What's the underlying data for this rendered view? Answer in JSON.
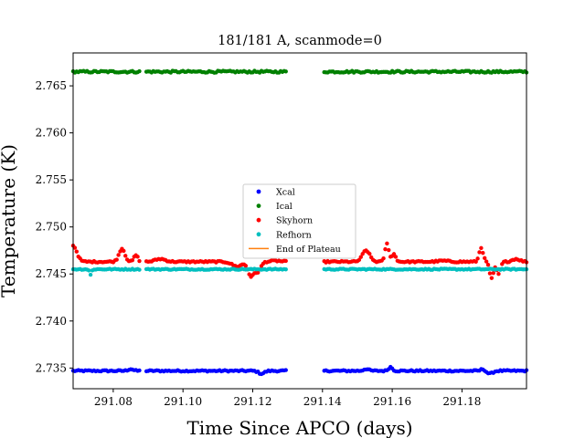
{
  "chart_data": {
    "type": "scatter",
    "title": "181/181 A, scanmode=0",
    "xlabel": "Time Since APCO (days)",
    "ylabel": "Temperature (K)",
    "xlim": [
      291.0685,
      291.1985
    ],
    "ylim": [
      2.7328,
      2.7685
    ],
    "xticks": [
      291.08,
      291.1,
      291.12,
      291.14,
      291.16,
      291.18
    ],
    "xtick_labels": [
      "291.08",
      "291.10",
      "291.12",
      "291.14",
      "291.16",
      "291.18"
    ],
    "yticks": [
      2.735,
      2.74,
      2.745,
      2.75,
      2.755,
      2.76,
      2.765
    ],
    "ytick_labels": [
      "2.735",
      "2.740",
      "2.745",
      "2.750",
      "2.755",
      "2.760",
      "2.765"
    ],
    "grid": false,
    "legend_position": "center",
    "x_segments": [
      [
        291.0685,
        291.0875
      ],
      [
        291.0895,
        291.1295
      ],
      [
        291.1405,
        291.1985
      ]
    ],
    "sample_step": 0.0005,
    "series": [
      {
        "name": "Xcal",
        "color": "#0000ff",
        "marker": "point",
        "base": 2.7347,
        "noise": 8e-05,
        "features": [
          {
            "x": 291.085,
            "dy": 0.0002,
            "w": 0.001
          },
          {
            "x": 291.1225,
            "dy": -0.0003,
            "w": 0.0012
          },
          {
            "x": 291.1525,
            "dy": 0.0002,
            "w": 0.001
          },
          {
            "x": 291.1595,
            "dy": 0.0004,
            "w": 0.0008
          },
          {
            "x": 291.186,
            "dy": 0.0002,
            "w": 0.0008
          },
          {
            "x": 291.188,
            "dy": -0.0003,
            "w": 0.0012
          }
        ]
      },
      {
        "name": "Ical",
        "color": "#008000",
        "marker": "point",
        "base": 2.7665,
        "noise": 0.0001,
        "features": []
      },
      {
        "name": "Skyhorn",
        "color": "#ff0000",
        "marker": "point",
        "base": 2.7463,
        "noise": 8e-05,
        "features": [
          {
            "x": 291.0685,
            "dy": 0.0017,
            "w": 0.0015
          },
          {
            "x": 291.0825,
            "dy": 0.0014,
            "w": 0.0012
          },
          {
            "x": 291.0865,
            "dy": 0.0007,
            "w": 0.0008
          },
          {
            "x": 291.0935,
            "dy": 0.0003,
            "w": 0.002
          },
          {
            "x": 291.1155,
            "dy": -0.0005,
            "w": 0.002
          },
          {
            "x": 291.1195,
            "dy": -0.0015,
            "w": 0.0012
          },
          {
            "x": 291.1215,
            "dy": -0.001,
            "w": 0.0012
          },
          {
            "x": 291.1265,
            "dy": 0.0001,
            "w": 0.002
          },
          {
            "x": 291.1525,
            "dy": 0.0012,
            "w": 0.0015
          },
          {
            "x": 291.1585,
            "dy": 0.0019,
            "w": 0.0008
          },
          {
            "x": 291.1605,
            "dy": 0.0008,
            "w": 0.0008
          },
          {
            "x": 291.1745,
            "dy": 0.0001,
            "w": 0.002
          },
          {
            "x": 291.1855,
            "dy": 0.0015,
            "w": 0.0008
          },
          {
            "x": 291.1885,
            "dy": -0.0018,
            "w": 0.0008
          },
          {
            "x": 291.1905,
            "dy": -0.0013,
            "w": 0.0008
          },
          {
            "x": 291.1955,
            "dy": 0.0003,
            "w": 0.0015
          }
        ]
      },
      {
        "name": "Refhorn",
        "color": "#00bfbf",
        "marker": "point",
        "base": 2.7455,
        "noise": 6e-05,
        "features": [
          {
            "x": 291.0735,
            "dy": -0.0006,
            "w": 0.0004
          }
        ]
      }
    ],
    "legend_extra": {
      "name": "End of Plateau",
      "color": "#ff7f0e",
      "marker": "line"
    }
  }
}
